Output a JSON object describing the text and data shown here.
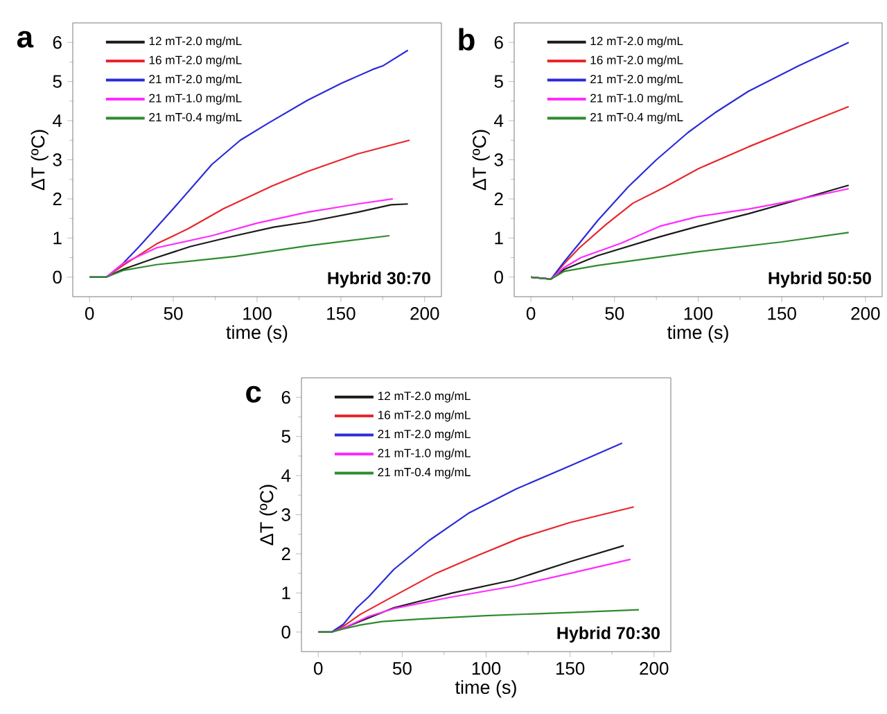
{
  "chart_data": [
    {
      "type": "line",
      "title": "a",
      "xlabel": "time (s)",
      "ylabel": "ΔT (ºC)",
      "annotations": [
        "Hybrid 30:70"
      ],
      "xlim": [
        -10,
        210
      ],
      "ylim": [
        -0.5,
        6.5
      ],
      "xticks": [
        0,
        50,
        100,
        150,
        200
      ],
      "yticks": [
        0,
        1,
        2,
        3,
        4,
        5,
        6
      ],
      "legend": "top left",
      "series": [
        {
          "name": "12 mT-2.0 mg/mL",
          "color": "#1a1a1a",
          "x": [
            0,
            10,
            20,
            40,
            60,
            87,
            110,
            130,
            160,
            180,
            190
          ],
          "values": [
            0,
            0,
            0.2,
            0.5,
            0.78,
            1.06,
            1.28,
            1.41,
            1.66,
            1.85,
            1.87
          ]
        },
        {
          "name": "16 mT-2.0 mg/mL",
          "color": "#e8262b",
          "x": [
            0,
            10,
            20,
            40,
            59,
            80,
            109,
            130,
            160,
            191
          ],
          "values": [
            0,
            0,
            0.3,
            0.85,
            1.24,
            1.75,
            2.33,
            2.7,
            3.15,
            3.5
          ]
        },
        {
          "name": "21 mT-2.0 mg/mL",
          "color": "#2b2bd9",
          "x": [
            0,
            10,
            20,
            30,
            50,
            73,
            90,
            106,
            130,
            150,
            169,
            175,
            190
          ],
          "values": [
            0,
            0,
            0.35,
            0.8,
            1.75,
            2.88,
            3.5,
            3.92,
            4.52,
            4.95,
            5.31,
            5.4,
            5.8
          ]
        },
        {
          "name": "21 mT-1.0 mg/mL",
          "color": "#ff2bff",
          "x": [
            0,
            10,
            20,
            40,
            73,
            100,
            130,
            160,
            181
          ],
          "values": [
            0,
            0,
            0.35,
            0.75,
            1.06,
            1.38,
            1.66,
            1.87,
            2.0
          ]
        },
        {
          "name": "21 mT-0.4 mg/mL",
          "color": "#2e8b2e",
          "x": [
            0,
            10,
            20,
            40,
            87,
            130,
            179
          ],
          "values": [
            0,
            0,
            0.17,
            0.32,
            0.53,
            0.8,
            1.06
          ]
        }
      ]
    },
    {
      "type": "line",
      "title": "b",
      "xlabel": "time (s)",
      "ylabel": "ΔT (ºC)",
      "annotations": [
        "Hybrid 50:50"
      ],
      "xlim": [
        -10,
        210
      ],
      "ylim": [
        -0.5,
        6.5
      ],
      "xticks": [
        0,
        50,
        100,
        150,
        200
      ],
      "yticks": [
        0,
        1,
        2,
        3,
        4,
        5,
        6
      ],
      "legend": "top left",
      "series": [
        {
          "name": "12 mT-2.0 mg/mL",
          "color": "#1a1a1a",
          "x": [
            0,
            12,
            20,
            40,
            77,
            100,
            130,
            160,
            190
          ],
          "values": [
            0,
            -0.05,
            0.2,
            0.55,
            1.03,
            1.3,
            1.62,
            1.98,
            2.35
          ]
        },
        {
          "name": "16 mT-2.0 mg/mL",
          "color": "#e8262b",
          "x": [
            0,
            12,
            20,
            29,
            45,
            61,
            80,
            100,
            130,
            160,
            190
          ],
          "values": [
            0,
            -0.05,
            0.35,
            0.75,
            1.35,
            1.89,
            2.3,
            2.77,
            3.33,
            3.85,
            4.36
          ]
        },
        {
          "name": "21 mT-2.0 mg/mL",
          "color": "#2b2bd9",
          "x": [
            0,
            12,
            20,
            29,
            40,
            58,
            75,
            94,
            110,
            130,
            160,
            190
          ],
          "values": [
            0,
            -0.05,
            0.4,
            0.87,
            1.45,
            2.3,
            3.0,
            3.7,
            4.2,
            4.75,
            5.4,
            6.0
          ]
        },
        {
          "name": "21 mT-1.0 mg/mL",
          "color": "#ff2bff",
          "x": [
            0,
            12,
            20,
            30,
            54,
            77,
            100,
            130,
            150,
            190
          ],
          "values": [
            0,
            -0.05,
            0.25,
            0.5,
            0.87,
            1.3,
            1.55,
            1.74,
            1.9,
            2.26
          ]
        },
        {
          "name": "21 mT-0.4 mg/mL",
          "color": "#2e8b2e",
          "x": [
            0,
            12,
            20,
            40,
            100,
            150,
            190
          ],
          "values": [
            0,
            -0.05,
            0.15,
            0.3,
            0.65,
            0.9,
            1.14
          ]
        }
      ]
    },
    {
      "type": "line",
      "title": "c",
      "xlabel": "time (s)",
      "ylabel": "ΔT (ºC)",
      "annotations": [
        "Hybrid 70:30"
      ],
      "xlim": [
        -10,
        210
      ],
      "ylim": [
        -0.5,
        6.5
      ],
      "xticks": [
        0,
        50,
        100,
        150,
        200
      ],
      "yticks": [
        0,
        1,
        2,
        3,
        4,
        5,
        6
      ],
      "legend": "top left",
      "series": [
        {
          "name": "12 mT-2.0 mg/mL",
          "color": "#1a1a1a",
          "x": [
            0,
            8,
            15,
            45,
            80,
            116,
            150,
            182
          ],
          "values": [
            0,
            0,
            0.1,
            0.62,
            1.0,
            1.33,
            1.8,
            2.21
          ]
        },
        {
          "name": "16 mT-2.0 mg/mL",
          "color": "#e8262b",
          "x": [
            0,
            8,
            15,
            25,
            45,
            70,
            95,
            120,
            150,
            188
          ],
          "values": [
            0,
            0,
            0.15,
            0.45,
            0.92,
            1.5,
            1.96,
            2.4,
            2.8,
            3.2
          ]
        },
        {
          "name": "21 mT-2.0 mg/mL",
          "color": "#2b2bd9",
          "x": [
            0,
            8,
            15,
            23,
            30,
            45,
            66,
            90,
            118,
            150,
            181
          ],
          "values": [
            0,
            0,
            0.2,
            0.62,
            0.9,
            1.6,
            2.34,
            3.05,
            3.66,
            4.25,
            4.83
          ]
        },
        {
          "name": "21 mT-1.0 mg/mL",
          "color": "#ff2bff",
          "x": [
            0,
            8,
            15,
            30,
            45,
            80,
            116,
            150,
            186
          ],
          "values": [
            0,
            0,
            0.1,
            0.4,
            0.6,
            0.9,
            1.17,
            1.5,
            1.86
          ]
        },
        {
          "name": "21 mT-0.4 mg/mL",
          "color": "#2e8b2e",
          "x": [
            0,
            8,
            15,
            25,
            38,
            60,
            100,
            150,
            191
          ],
          "values": [
            0,
            0,
            0.08,
            0.18,
            0.27,
            0.33,
            0.42,
            0.5,
            0.57
          ]
        }
      ]
    }
  ]
}
